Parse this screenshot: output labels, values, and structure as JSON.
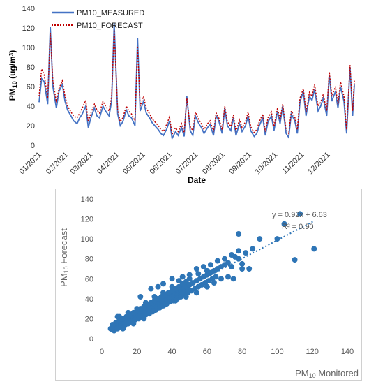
{
  "chart_data": [
    {
      "type": "line",
      "xlabel": "Date",
      "ylabel_main": "PM",
      "ylabel_sub": "10",
      "ylabel_unit": " (ug/m",
      "ylabel_sup": "3",
      "ylabel_close": ")",
      "ylim": [
        0,
        140
      ],
      "yticks": [
        0,
        20,
        40,
        60,
        80,
        100,
        120,
        140
      ],
      "xticks": [
        "01/2021",
        "02/2021",
        "03/2021",
        "04/2021",
        "05/2021",
        "06/2021",
        "07/2021",
        "08/2021",
        "09/2021",
        "10/2021",
        "11/2021",
        "12/2021"
      ],
      "x_range_days": [
        0,
        365
      ],
      "legend": "top-left",
      "series": [
        {
          "name": "PM10_MEASURED",
          "color": "#4472C4",
          "style": "solid",
          "x": [
            0,
            3,
            6,
            10,
            13,
            16,
            20,
            23,
            27,
            30,
            33,
            37,
            40,
            44,
            47,
            50,
            54,
            57,
            60,
            64,
            67,
            70,
            74,
            77,
            81,
            84,
            87,
            91,
            94,
            97,
            101,
            104,
            107,
            111,
            114,
            117,
            121,
            124,
            128,
            131,
            134,
            138,
            141,
            144,
            148,
            151,
            154,
            158,
            161,
            165,
            168,
            171,
            175,
            178,
            181,
            185,
            188,
            191,
            195,
            198,
            202,
            205,
            208,
            212,
            215,
            218,
            222,
            225,
            228,
            232,
            235,
            239,
            242,
            245,
            249,
            252,
            255,
            259,
            262,
            265,
            269,
            272,
            276,
            279,
            282,
            286,
            289,
            292,
            296,
            299,
            302,
            306,
            309,
            313,
            316,
            319,
            323,
            326,
            329,
            333,
            336,
            339,
            343,
            346,
            349,
            353,
            356,
            360,
            363,
            365
          ],
          "values": [
            44,
            68,
            65,
            42,
            121,
            60,
            38,
            55,
            62,
            45,
            36,
            30,
            25,
            22,
            28,
            32,
            40,
            18,
            28,
            38,
            30,
            28,
            40,
            35,
            30,
            45,
            125,
            32,
            20,
            24,
            36,
            30,
            28,
            20,
            110,
            35,
            45,
            33,
            28,
            23,
            20,
            16,
            12,
            10,
            17,
            25,
            7,
            14,
            10,
            18,
            9,
            50,
            15,
            10,
            30,
            22,
            18,
            12,
            18,
            21,
            10,
            30,
            25,
            12,
            38,
            20,
            15,
            28,
            10,
            22,
            14,
            20,
            30,
            15,
            9,
            12,
            20,
            28,
            10,
            24,
            30,
            15,
            35,
            22,
            40,
            12,
            8,
            32,
            25,
            12,
            44,
            55,
            30,
            50,
            46,
            57,
            35,
            40,
            48,
            30,
            72,
            45,
            55,
            38,
            60,
            45,
            12,
            80,
            30,
            62
          ]
        },
        {
          "name": "PM10_FORECAST",
          "color": "#C00000",
          "style": "dotted",
          "x": [
            0,
            3,
            6,
            10,
            13,
            16,
            20,
            23,
            27,
            30,
            33,
            37,
            40,
            44,
            47,
            50,
            54,
            57,
            60,
            64,
            67,
            70,
            74,
            77,
            81,
            84,
            87,
            91,
            94,
            97,
            101,
            104,
            107,
            111,
            114,
            117,
            121,
            124,
            128,
            131,
            134,
            138,
            141,
            144,
            148,
            151,
            154,
            158,
            161,
            165,
            168,
            171,
            175,
            178,
            181,
            185,
            188,
            191,
            195,
            198,
            202,
            205,
            208,
            212,
            215,
            218,
            222,
            225,
            228,
            232,
            235,
            239,
            242,
            245,
            249,
            252,
            255,
            259,
            262,
            265,
            269,
            272,
            276,
            279,
            282,
            286,
            289,
            292,
            296,
            299,
            302,
            306,
            309,
            313,
            316,
            319,
            323,
            326,
            329,
            333,
            336,
            339,
            343,
            346,
            349,
            353,
            356,
            360,
            363,
            365
          ],
          "values": [
            50,
            78,
            72,
            48,
            115,
            66,
            44,
            58,
            66,
            50,
            40,
            34,
            30,
            28,
            33,
            38,
            46,
            24,
            33,
            42,
            36,
            33,
            45,
            40,
            35,
            50,
            118,
            36,
            24,
            28,
            40,
            35,
            32,
            25,
            100,
            40,
            50,
            38,
            32,
            27,
            24,
            20,
            16,
            14,
            22,
            29,
            11,
            18,
            14,
            22,
            13,
            48,
            19,
            15,
            34,
            26,
            22,
            16,
            22,
            25,
            14,
            33,
            28,
            16,
            40,
            24,
            19,
            31,
            14,
            26,
            18,
            24,
            34,
            19,
            13,
            16,
            24,
            32,
            14,
            28,
            34,
            19,
            38,
            26,
            42,
            16,
            12,
            35,
            29,
            16,
            48,
            58,
            34,
            54,
            50,
            62,
            40,
            44,
            52,
            35,
            75,
            50,
            60,
            42,
            65,
            50,
            16,
            82,
            35,
            66
          ]
        }
      ]
    },
    {
      "type": "scatter",
      "xlabel_main": "PM",
      "xlabel_sub": "10",
      "xlabel_rest": " Monitored",
      "ylabel_main": "PM",
      "ylabel_sub": "10",
      "ylabel_rest": " Forecast",
      "xlim": [
        0,
        140
      ],
      "ylim": [
        0,
        140
      ],
      "xticks": [
        0,
        20,
        40,
        60,
        80,
        100,
        120,
        140
      ],
      "yticks": [
        0,
        20,
        40,
        60,
        80,
        100,
        120,
        140
      ],
      "color": "#2E75B6",
      "equation": "y = 0.92x + 6.63",
      "r_squared": "R² = 0.90",
      "trendline": {
        "slope": 0.92,
        "intercept": 6.63,
        "x_range": [
          5,
          121
        ]
      },
      "points": [
        [
          5,
          10
        ],
        [
          6,
          9
        ],
        [
          7,
          12
        ],
        [
          8,
          11
        ],
        [
          9,
          14
        ],
        [
          10,
          13
        ],
        [
          11,
          15
        ],
        [
          12,
          14
        ],
        [
          13,
          18
        ],
        [
          14,
          16
        ],
        [
          15,
          20
        ],
        [
          16,
          17
        ],
        [
          17,
          22
        ],
        [
          18,
          19
        ],
        [
          19,
          23
        ],
        [
          20,
          21
        ],
        [
          21,
          25
        ],
        [
          22,
          24
        ],
        [
          23,
          27
        ],
        [
          24,
          26
        ],
        [
          25,
          28
        ],
        [
          26,
          30
        ],
        [
          27,
          29
        ],
        [
          28,
          31
        ],
        [
          29,
          33
        ],
        [
          30,
          32
        ],
        [
          31,
          34
        ],
        [
          32,
          36
        ],
        [
          33,
          35
        ],
        [
          34,
          38
        ],
        [
          35,
          37
        ],
        [
          36,
          40
        ],
        [
          37,
          39
        ],
        [
          38,
          42
        ],
        [
          39,
          41
        ],
        [
          40,
          44
        ],
        [
          41,
          43
        ],
        [
          42,
          46
        ],
        [
          43,
          45
        ],
        [
          44,
          48
        ],
        [
          45,
          47
        ],
        [
          46,
          50
        ],
        [
          47,
          49
        ],
        [
          48,
          52
        ],
        [
          49,
          51
        ],
        [
          50,
          54
        ],
        [
          52,
          56
        ],
        [
          54,
          58
        ],
        [
          56,
          60
        ],
        [
          58,
          62
        ],
        [
          60,
          64
        ],
        [
          62,
          66
        ],
        [
          64,
          68
        ],
        [
          66,
          70
        ],
        [
          68,
          72
        ],
        [
          70,
          74
        ],
        [
          72,
          76
        ],
        [
          74,
          72
        ],
        [
          76,
          82
        ],
        [
          78,
          80
        ],
        [
          80,
          75
        ],
        [
          82,
          86
        ],
        [
          84,
          70
        ],
        [
          86,
          90
        ],
        [
          6,
          14
        ],
        [
          8,
          16
        ],
        [
          10,
          18
        ],
        [
          12,
          20
        ],
        [
          14,
          22
        ],
        [
          16,
          24
        ],
        [
          18,
          26
        ],
        [
          20,
          28
        ],
        [
          22,
          30
        ],
        [
          24,
          32
        ],
        [
          26,
          34
        ],
        [
          28,
          36
        ],
        [
          30,
          38
        ],
        [
          32,
          40
        ],
        [
          34,
          42
        ],
        [
          36,
          44
        ],
        [
          38,
          46
        ],
        [
          40,
          48
        ],
        [
          42,
          50
        ],
        [
          44,
          52
        ],
        [
          46,
          55
        ],
        [
          48,
          57
        ],
        [
          50,
          60
        ],
        [
          55,
          65
        ],
        [
          60,
          68
        ],
        [
          7,
          8
        ],
        [
          9,
          10
        ],
        [
          11,
          12
        ],
        [
          13,
          13
        ],
        [
          15,
          15
        ],
        [
          17,
          17
        ],
        [
          19,
          19
        ],
        [
          21,
          20
        ],
        [
          23,
          22
        ],
        [
          25,
          24
        ],
        [
          27,
          25
        ],
        [
          29,
          27
        ],
        [
          31,
          29
        ],
        [
          33,
          31
        ],
        [
          35,
          33
        ],
        [
          37,
          35
        ],
        [
          39,
          37
        ],
        [
          41,
          38
        ],
        [
          43,
          40
        ],
        [
          45,
          42
        ],
        [
          47,
          44
        ],
        [
          49,
          46
        ],
        [
          51,
          48
        ],
        [
          53,
          50
        ],
        [
          55,
          52
        ],
        [
          57,
          54
        ],
        [
          59,
          56
        ],
        [
          61,
          58
        ],
        [
          63,
          60
        ],
        [
          65,
          62
        ],
        [
          10,
          22
        ],
        [
          15,
          26
        ],
        [
          20,
          30
        ],
        [
          25,
          36
        ],
        [
          30,
          42
        ],
        [
          35,
          46
        ],
        [
          40,
          52
        ],
        [
          44,
          58
        ],
        [
          46,
          62
        ],
        [
          50,
          64
        ],
        [
          54,
          70
        ],
        [
          58,
          72
        ],
        [
          62,
          74
        ],
        [
          66,
          78
        ],
        [
          70,
          80
        ],
        [
          74,
          84
        ],
        [
          78,
          88
        ],
        [
          12,
          10
        ],
        [
          18,
          15
        ],
        [
          24,
          20
        ],
        [
          30,
          28
        ],
        [
          36,
          34
        ],
        [
          42,
          38
        ],
        [
          48,
          42
        ],
        [
          54,
          46
        ],
        [
          60,
          52
        ],
        [
          64,
          56
        ],
        [
          68,
          60
        ],
        [
          72,
          62
        ],
        [
          9,
          22
        ],
        [
          22,
          42
        ],
        [
          28,
          50
        ],
        [
          32,
          52
        ],
        [
          35,
          55
        ],
        [
          40,
          60
        ],
        [
          78,
          105
        ],
        [
          90,
          100
        ],
        [
          100,
          100
        ],
        [
          104,
          115
        ],
        [
          110,
          79
        ],
        [
          113,
          125
        ],
        [
          121,
          90
        ],
        [
          80,
          70
        ],
        [
          75,
          60
        ]
      ]
    }
  ]
}
